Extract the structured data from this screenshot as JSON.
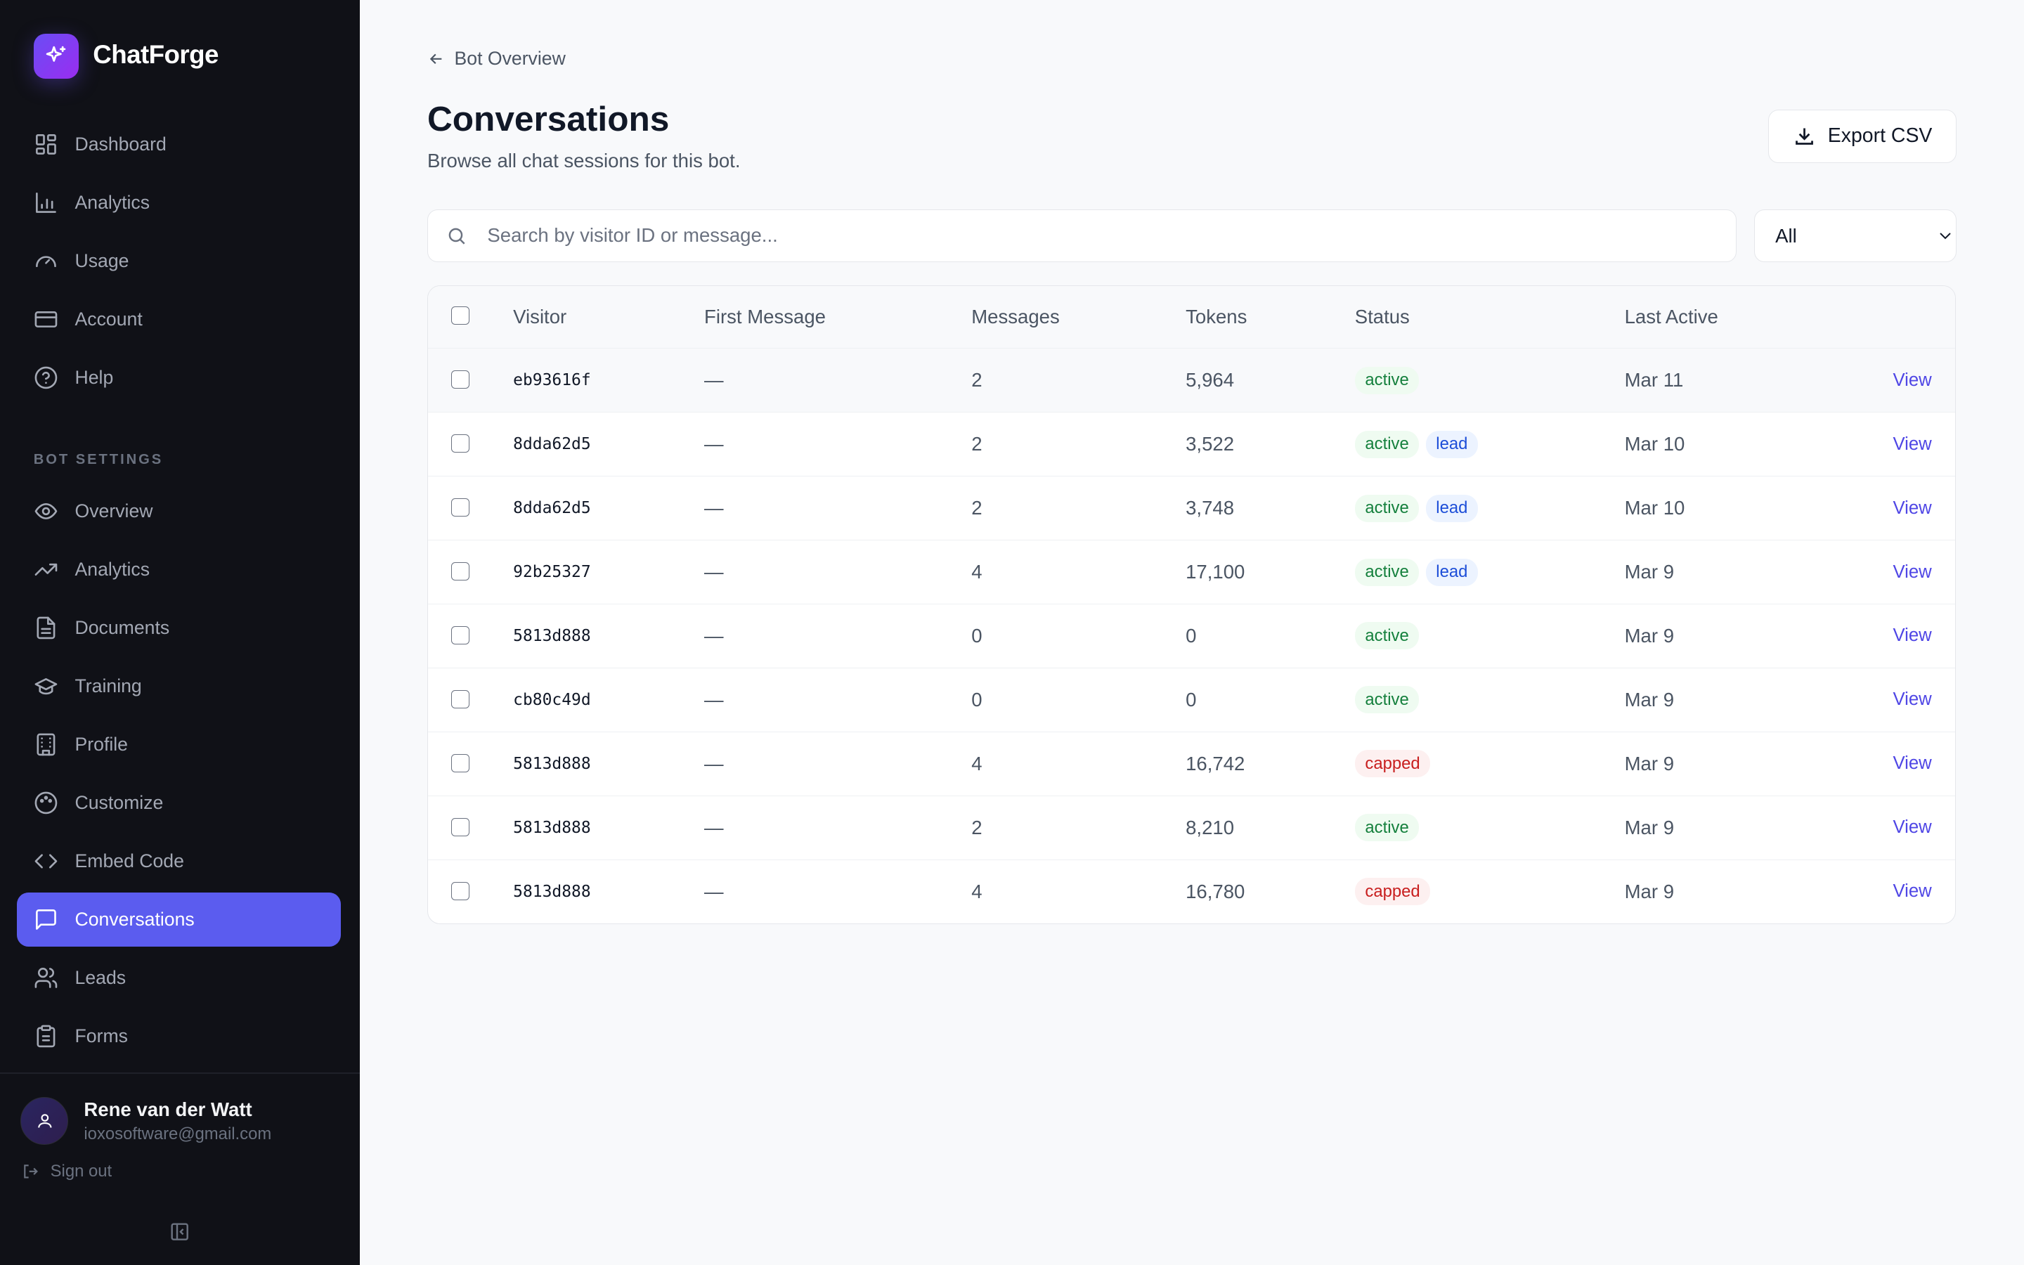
{
  "brand": "ChatForge",
  "nav": [
    {
      "label": "Dashboard",
      "icon": "grid-icon"
    },
    {
      "label": "Analytics",
      "icon": "bar-chart-icon"
    },
    {
      "label": "Usage",
      "icon": "gauge-icon"
    },
    {
      "label": "Account",
      "icon": "credit-card-icon"
    },
    {
      "label": "Help",
      "icon": "help-circle-icon"
    }
  ],
  "bot_settings_label": "BOT SETTINGS",
  "bot_nav": [
    {
      "label": "Overview",
      "icon": "eye-icon"
    },
    {
      "label": "Analytics",
      "icon": "trending-up-icon"
    },
    {
      "label": "Documents",
      "icon": "file-text-icon"
    },
    {
      "label": "Training",
      "icon": "graduation-cap-icon"
    },
    {
      "label": "Profile",
      "icon": "building-icon"
    },
    {
      "label": "Customize",
      "icon": "palette-icon"
    },
    {
      "label": "Embed Code",
      "icon": "code-icon"
    },
    {
      "label": "Conversations",
      "icon": "message-square-icon",
      "active": true
    },
    {
      "label": "Leads",
      "icon": "users-icon"
    },
    {
      "label": "Forms",
      "icon": "clipboard-icon"
    }
  ],
  "user": {
    "name": "Rene van der Watt",
    "email": "ioxosoftware@gmail.com",
    "signout": "Sign out"
  },
  "back_label": "Bot Overview",
  "title": "Conversations",
  "subtitle": "Browse all chat sessions for this bot.",
  "export_label": "Export CSV",
  "search_placeholder": "Search by visitor ID or message...",
  "filter_value": "All",
  "columns": [
    "Visitor",
    "First Message",
    "Messages",
    "Tokens",
    "Status",
    "Last Active"
  ],
  "view_label": "View",
  "rows": [
    {
      "visitor": "eb93616f",
      "first": "—",
      "messages": "2",
      "tokens": "5,964",
      "status": [
        "active"
      ],
      "last": "Mar 11"
    },
    {
      "visitor": "8dda62d5",
      "first": "—",
      "messages": "2",
      "tokens": "3,522",
      "status": [
        "active",
        "lead"
      ],
      "last": "Mar 10"
    },
    {
      "visitor": "8dda62d5",
      "first": "—",
      "messages": "2",
      "tokens": "3,748",
      "status": [
        "active",
        "lead"
      ],
      "last": "Mar 10"
    },
    {
      "visitor": "92b25327",
      "first": "—",
      "messages": "4",
      "tokens": "17,100",
      "status": [
        "active",
        "lead"
      ],
      "last": "Mar 9"
    },
    {
      "visitor": "5813d888",
      "first": "—",
      "messages": "0",
      "tokens": "0",
      "status": [
        "active"
      ],
      "last": "Mar 9"
    },
    {
      "visitor": "cb80c49d",
      "first": "—",
      "messages": "0",
      "tokens": "0",
      "status": [
        "active"
      ],
      "last": "Mar 9"
    },
    {
      "visitor": "5813d888",
      "first": "—",
      "messages": "4",
      "tokens": "16,742",
      "status": [
        "capped"
      ],
      "last": "Mar 9"
    },
    {
      "visitor": "5813d888",
      "first": "—",
      "messages": "2",
      "tokens": "8,210",
      "status": [
        "active"
      ],
      "last": "Mar 9"
    },
    {
      "visitor": "5813d888",
      "first": "—",
      "messages": "4",
      "tokens": "16,780",
      "status": [
        "capped"
      ],
      "last": "Mar 9"
    }
  ]
}
